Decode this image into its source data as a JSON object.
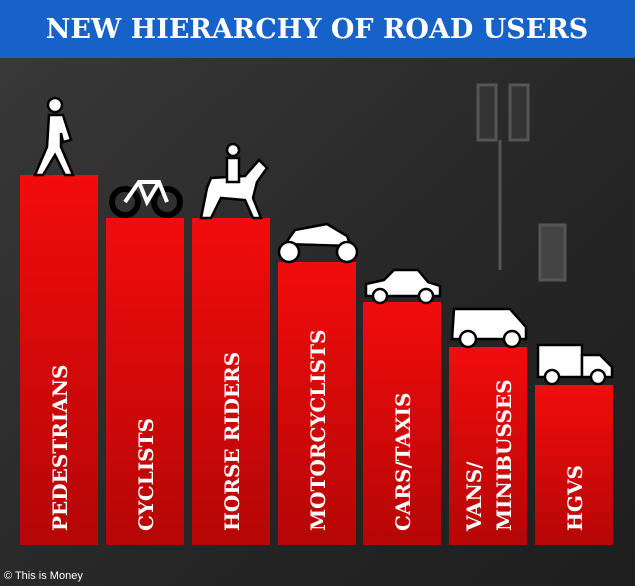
{
  "header": {
    "title": "NEW HIERARCHY OF ROAD USERS"
  },
  "bars": [
    {
      "label": [
        "PEDESTRIANS"
      ]
    },
    {
      "label": [
        "CYCLISTS"
      ]
    },
    {
      "label": [
        "HORSE RIDERS"
      ]
    },
    {
      "label": [
        "MOTORCYCLISTS"
      ]
    },
    {
      "label": [
        "CARS/TAXIS"
      ]
    },
    {
      "label": [
        "VANS/",
        "MINIBUSSES"
      ]
    },
    {
      "label": [
        "HGVS"
      ]
    }
  ],
  "footer": {
    "credit": "© This is Money"
  }
}
